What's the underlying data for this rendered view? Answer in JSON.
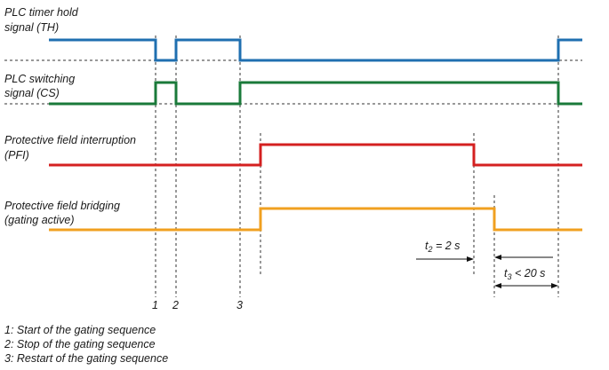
{
  "signals": [
    {
      "id": "th",
      "label_lines": [
        "PLC timer hold",
        "signal (TH)"
      ],
      "color": "#1f6fb0"
    },
    {
      "id": "cs",
      "label_lines": [
        "PLC switching",
        "signal (CS)"
      ],
      "color": "#1a7a3a"
    },
    {
      "id": "pfi",
      "label_lines": [
        "Protective field interruption",
        "(PFI)"
      ],
      "color": "#d42020"
    },
    {
      "id": "gating",
      "label_lines": [
        "Protective field bridging",
        "(gating active)"
      ],
      "color": "#f0a020"
    }
  ],
  "markers": [
    "1",
    "2",
    "3"
  ],
  "timing": {
    "t2": {
      "sym": "t",
      "sub": "2",
      "rest": " = 2 s"
    },
    "t3": {
      "sym": "t",
      "sub": "3",
      "rest": " < 20 s"
    }
  },
  "legend": [
    "1: Start of the gating sequence",
    "2: Stop of the gating sequence",
    "3: Restart of the gating sequence"
  ]
}
